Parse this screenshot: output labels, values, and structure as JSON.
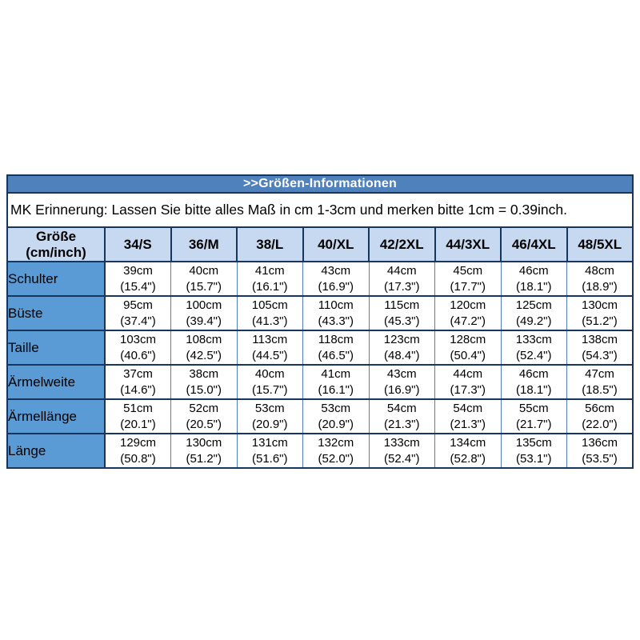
{
  "panel": {
    "title": ">>Größen-Informationen",
    "note": "MK Erinnerung: Lassen Sie bitte alles Maß in cm 1-3cm und merken bitte 1cm = 0.39inch."
  },
  "colors": {
    "title_bar_bg": "#4F81BD",
    "dark_border": "#17365D",
    "header_row_bg": "#C6D9F1",
    "label_column_bg": "#5B9BD5",
    "data_cell_border": "#4F81BD",
    "title_text": "#FFFFFF",
    "body_text": "#000000"
  },
  "chart_data": {
    "type": "table",
    "title": ">>Größen-Informationen",
    "note": "MK Erinnerung: Lassen Sie bitte alles Maß in cm 1-3cm und merken bitte 1cm = 0.39inch.",
    "corner_header": {
      "line1": "Größe",
      "line2": "(cm/inch)"
    },
    "columns": [
      "34/S",
      "36/M",
      "38/L",
      "40/XL",
      "42/2XL",
      "44/3XL",
      "46/4XL",
      "48/5XL"
    ],
    "rows": [
      {
        "label": "Schulter",
        "cells": [
          {
            "cm": "39cm",
            "inch": "(15.4\")"
          },
          {
            "cm": "40cm",
            "inch": "(15.7\")"
          },
          {
            "cm": "41cm",
            "inch": "(16.1\")"
          },
          {
            "cm": "43cm",
            "inch": "(16.9\")"
          },
          {
            "cm": "44cm",
            "inch": "(17.3\")"
          },
          {
            "cm": "45cm",
            "inch": "(17.7\")"
          },
          {
            "cm": "46cm",
            "inch": "(18.1\")"
          },
          {
            "cm": "48cm",
            "inch": "(18.9\")"
          }
        ]
      },
      {
        "label": "Büste",
        "cells": [
          {
            "cm": "95cm",
            "inch": "(37.4\")"
          },
          {
            "cm": "100cm",
            "inch": "(39.4\")"
          },
          {
            "cm": "105cm",
            "inch": "(41.3\")"
          },
          {
            "cm": "110cm",
            "inch": "(43.3\")"
          },
          {
            "cm": "115cm",
            "inch": "(45.3\")"
          },
          {
            "cm": "120cm",
            "inch": "(47.2\")"
          },
          {
            "cm": "125cm",
            "inch": "(49.2\")"
          },
          {
            "cm": "130cm",
            "inch": "(51.2\")"
          }
        ]
      },
      {
        "label": "Taille",
        "cells": [
          {
            "cm": "103cm",
            "inch": "(40.6\")"
          },
          {
            "cm": "108cm",
            "inch": "(42.5\")"
          },
          {
            "cm": "113cm",
            "inch": "(44.5\")"
          },
          {
            "cm": "118cm",
            "inch": "(46.5\")"
          },
          {
            "cm": "123cm",
            "inch": "(48.4\")"
          },
          {
            "cm": "128cm",
            "inch": "(50.4\")"
          },
          {
            "cm": "133cm",
            "inch": "(52.4\")"
          },
          {
            "cm": "138cm",
            "inch": "(54.3\")"
          }
        ]
      },
      {
        "label": "Ärmelweite",
        "cells": [
          {
            "cm": "37cm",
            "inch": "(14.6\")"
          },
          {
            "cm": "38cm",
            "inch": "(15.0\")"
          },
          {
            "cm": "40cm",
            "inch": "(15.7\")"
          },
          {
            "cm": "41cm",
            "inch": "(16.1\")"
          },
          {
            "cm": "43cm",
            "inch": "(16.9\")"
          },
          {
            "cm": "44cm",
            "inch": "(17.3\")"
          },
          {
            "cm": "46cm",
            "inch": "(18.1\")"
          },
          {
            "cm": "47cm",
            "inch": "(18.5\")"
          }
        ]
      },
      {
        "label": "Ärmellänge",
        "cells": [
          {
            "cm": "51cm",
            "inch": "(20.1\")"
          },
          {
            "cm": "52cm",
            "inch": "(20.5\")"
          },
          {
            "cm": "53cm",
            "inch": "(20.9\")"
          },
          {
            "cm": "53cm",
            "inch": "(20.9\")"
          },
          {
            "cm": "54cm",
            "inch": "(21.3\")"
          },
          {
            "cm": "54cm",
            "inch": "(21.3\")"
          },
          {
            "cm": "55cm",
            "inch": "(21.7\")"
          },
          {
            "cm": "56cm",
            "inch": "(22.0\")"
          }
        ]
      },
      {
        "label": "Länge",
        "cells": [
          {
            "cm": "129cm",
            "inch": "(50.8\")"
          },
          {
            "cm": "130cm",
            "inch": "(51.2\")"
          },
          {
            "cm": "131cm",
            "inch": "(51.6\")"
          },
          {
            "cm": "132cm",
            "inch": "(52.0\")"
          },
          {
            "cm": "133cm",
            "inch": "(52.4\")"
          },
          {
            "cm": "134cm",
            "inch": "(52.8\")"
          },
          {
            "cm": "135cm",
            "inch": "(53.1\")"
          },
          {
            "cm": "136cm",
            "inch": "(53.5\")"
          }
        ]
      }
    ]
  }
}
